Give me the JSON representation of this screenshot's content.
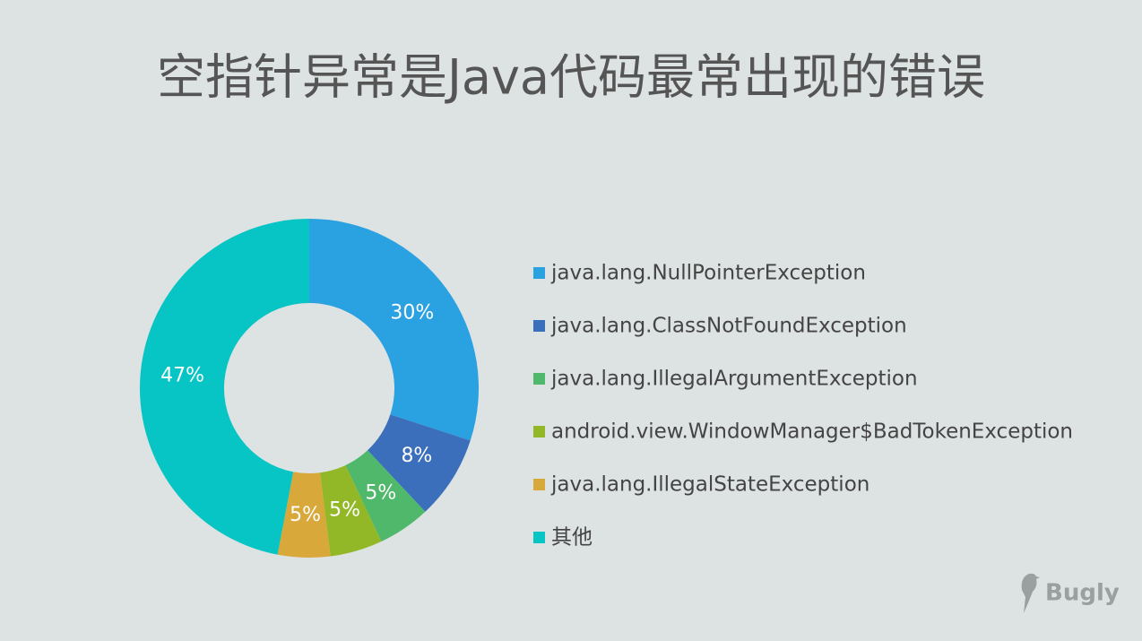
{
  "chart_data": {
    "type": "pie",
    "title": "空指针异常是Java代码最常出现的错误",
    "categories": [
      "java.lang.NullPointerException",
      "java.lang.ClassNotFoundException",
      "java.lang.IllegalArgumentException",
      "android.view.WindowManager$BadTokenException",
      "java.lang.IllegalStateException",
      "其他"
    ],
    "values": [
      30,
      8,
      5,
      5,
      5,
      47
    ],
    "value_labels": [
      "30%",
      "8%",
      "5%",
      "5%",
      "5%",
      "47%"
    ],
    "colors": [
      "#2aa1e0",
      "#3b6fbc",
      "#4fb86b",
      "#93b827",
      "#d9a83a",
      "#06c5c4"
    ],
    "legend": "right"
  },
  "watermark": "Bugly"
}
